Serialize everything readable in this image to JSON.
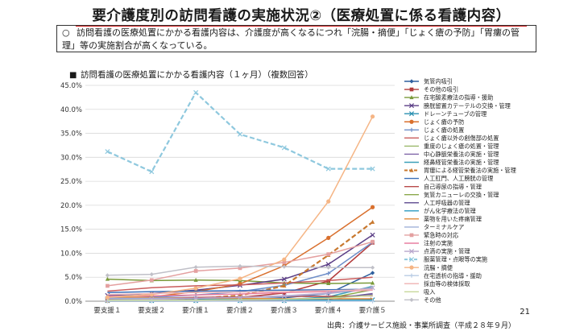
{
  "page": {
    "title": "要介護度別の訪問看護の実施状況②（医療処置に係る看護内容）",
    "note_bullet": "○",
    "note_text": "訪問看護の医療処置にかかる看護内容は、介護度が高くなるにつれ「浣腸・摘便」「じょく瘡の予防」「胃瘻の管理」等の実施割合が高くなっている。",
    "section_marker": "■",
    "page_number": "21",
    "source": "出典：介護サービス施設・事業所調査（平成２８年９月）"
  },
  "chart_data": {
    "type": "line",
    "title": "訪問看護の医療処置にかかる看護内容（１ヶ月）（複数回答）",
    "xlabel": "",
    "ylabel": "",
    "categories": [
      "要支援１",
      "要支援２",
      "要介護１",
      "要介護２",
      "要介護３",
      "要介護４",
      "要介護５"
    ],
    "y_ticks": [
      "0.0%",
      "5.0%",
      "10.0%",
      "15.0%",
      "20.0%",
      "25.0%",
      "30.0%",
      "35.0%",
      "40.0%",
      "45.0%"
    ],
    "ylim": [
      0,
      45
    ],
    "legend_position": "right",
    "series": [
      {
        "name": "気管内吸引",
        "color": "#2e5f9e",
        "dash": "",
        "marker": "diamond",
        "values": [
          0.2,
          0.2,
          0.3,
          0.4,
          0.7,
          1.6,
          5.9
        ]
      },
      {
        "name": "その他の吸引",
        "color": "#b23a3a",
        "dash": "",
        "marker": "square",
        "values": [
          0.4,
          0.4,
          0.5,
          0.8,
          1.7,
          4.2,
          12.2
        ]
      },
      {
        "name": "在宅酸素療法の指導・援助",
        "color": "#7a9a3a",
        "dash": "",
        "marker": "triangle",
        "values": [
          4.6,
          4.3,
          4.4,
          4.3,
          3.8,
          3.7,
          3.8
        ]
      },
      {
        "name": "膀胱留置カテーテルの交換・管理",
        "color": "#5b3e86",
        "dash": "",
        "marker": "x",
        "values": [
          1.2,
          1.6,
          2.3,
          3.3,
          4.6,
          7.7,
          13.8
        ]
      },
      {
        "name": "ドレーンチューブの管理",
        "color": "#2a8fb0",
        "dash": "",
        "marker": "x",
        "values": [
          0.1,
          0.1,
          0.1,
          0.1,
          0.1,
          0.2,
          0.3
        ]
      },
      {
        "name": "じょく瘡の予防",
        "color": "#d9702e",
        "dash": "",
        "marker": "circle",
        "values": [
          0.6,
          0.9,
          2.0,
          3.6,
          7.4,
          13.2,
          19.6
        ]
      },
      {
        "name": "じょく瘡の処置",
        "color": "#6f8fc9",
        "dash": "",
        "marker": "plus",
        "values": [
          0.6,
          0.8,
          1.3,
          2.0,
          3.3,
          5.8,
          12.3
        ]
      },
      {
        "name": "じょく瘡以外の創傷部の処置",
        "color": "#c95c5c",
        "dash": "",
        "marker": "none",
        "values": [
          2.1,
          2.8,
          3.2,
          3.4,
          3.8,
          4.3,
          5.0
        ]
      },
      {
        "name": "重度のじょく瘡の処置・管理",
        "color": "#9ab86a",
        "dash": "",
        "marker": "none",
        "values": [
          0.1,
          0.1,
          0.1,
          0.2,
          0.3,
          0.6,
          1.3
        ]
      },
      {
        "name": "中心静脈栄養法の実施・管理",
        "color": "#7f64a8",
        "dash": "",
        "marker": "none",
        "values": [
          0.1,
          0.1,
          0.1,
          0.2,
          0.4,
          0.7,
          1.4
        ]
      },
      {
        "name": "経鼻経管栄養法の実施・管理",
        "color": "#3aa0b8",
        "dash": "",
        "marker": "none",
        "values": [
          0.0,
          0.0,
          0.1,
          0.1,
          0.3,
          0.9,
          3.1
        ]
      },
      {
        "name": "胃瘻による経管栄養法の実施・管理",
        "color": "#c8782e",
        "dash": "6,3",
        "marker": "triangle",
        "values": [
          0.1,
          0.2,
          0.5,
          1.2,
          3.2,
          9.6,
          16.5
        ]
      },
      {
        "name": "人工肛門、人工膀胱の管理",
        "color": "#3a6fb8",
        "dash": "",
        "marker": "none",
        "values": [
          1.8,
          2.0,
          2.1,
          2.2,
          2.3,
          2.4,
          2.5
        ]
      },
      {
        "name": "自己導尿の指導・管理",
        "color": "#b84a4a",
        "dash": "",
        "marker": "none",
        "values": [
          0.5,
          0.6,
          0.8,
          0.9,
          1.0,
          1.0,
          1.1
        ]
      },
      {
        "name": "気管カニューレの交換・管理",
        "color": "#8aa84a",
        "dash": "",
        "marker": "none",
        "values": [
          0.0,
          0.0,
          0.1,
          0.1,
          0.2,
          0.6,
          2.4
        ]
      },
      {
        "name": "人工呼吸器の管理",
        "color": "#6a5898",
        "dash": "",
        "marker": "none",
        "values": [
          0.0,
          0.0,
          0.0,
          0.1,
          0.1,
          0.4,
          1.6
        ]
      },
      {
        "name": "がん化学療法の管理",
        "color": "#2a9ac0",
        "dash": "",
        "marker": "none",
        "values": [
          0.6,
          0.5,
          0.5,
          0.4,
          0.3,
          0.2,
          0.2
        ]
      },
      {
        "name": "薬物を用いた疼痛管理",
        "color": "#e08a3a",
        "dash": "",
        "marker": "none",
        "values": [
          0.9,
          0.7,
          0.6,
          0.6,
          0.5,
          0.5,
          0.5
        ]
      },
      {
        "name": "ターミナルケア",
        "color": "#9fb0d8",
        "dash": "",
        "marker": "none",
        "values": [
          0.6,
          0.6,
          0.6,
          0.8,
          1.0,
          1.6,
          2.6
        ]
      },
      {
        "name": "緊急時の対応",
        "color": "#e4a0a0",
        "dash": "",
        "marker": "square",
        "values": [
          3.2,
          4.4,
          6.3,
          6.9,
          8.1,
          9.8,
          12.4
        ]
      },
      {
        "name": "注射の実施",
        "color": "#e87fa0",
        "dash": "",
        "marker": "none",
        "values": [
          1.0,
          1.1,
          1.3,
          1.5,
          1.8,
          2.0,
          2.3
        ]
      },
      {
        "name": "点滴の実施・管理",
        "color": "#b8a6cc",
        "dash": "",
        "marker": "x",
        "values": [
          0.3,
          0.4,
          0.6,
          0.8,
          1.1,
          1.7,
          2.8
        ]
      },
      {
        "name": "服薬管理・点眼等の実施",
        "color": "#8ec8de",
        "dash": "6,3",
        "marker": "x",
        "values": [
          31.2,
          27.0,
          43.5,
          34.8,
          32.0,
          27.6,
          27.6
        ]
      },
      {
        "name": "浣腸・摘便",
        "color": "#f5b585",
        "dash": "",
        "marker": "circle",
        "values": [
          0.8,
          1.4,
          2.7,
          4.7,
          8.7,
          20.8,
          38.5
        ]
      },
      {
        "name": "在宅透析の指導・援助",
        "color": "#b8cce4",
        "dash": "",
        "marker": "plus",
        "values": [
          0.0,
          0.0,
          0.0,
          0.0,
          0.0,
          0.0,
          0.0
        ]
      },
      {
        "name": "採血等の検体採取",
        "color": "#f0b8b8",
        "dash": "",
        "marker": "none",
        "values": [
          1.4,
          1.6,
          1.8,
          1.9,
          2.0,
          2.2,
          2.4
        ]
      },
      {
        "name": "吸入",
        "color": "#c8d89a",
        "dash": "",
        "marker": "none",
        "values": [
          0.2,
          0.2,
          0.2,
          0.3,
          0.4,
          0.6,
          1.2
        ]
      },
      {
        "name": "その他",
        "color": "#c0c0c8",
        "dash": "",
        "marker": "diamond",
        "values": [
          5.4,
          5.6,
          7.1,
          7.3,
          7.2,
          7.0,
          7.0
        ]
      }
    ]
  }
}
